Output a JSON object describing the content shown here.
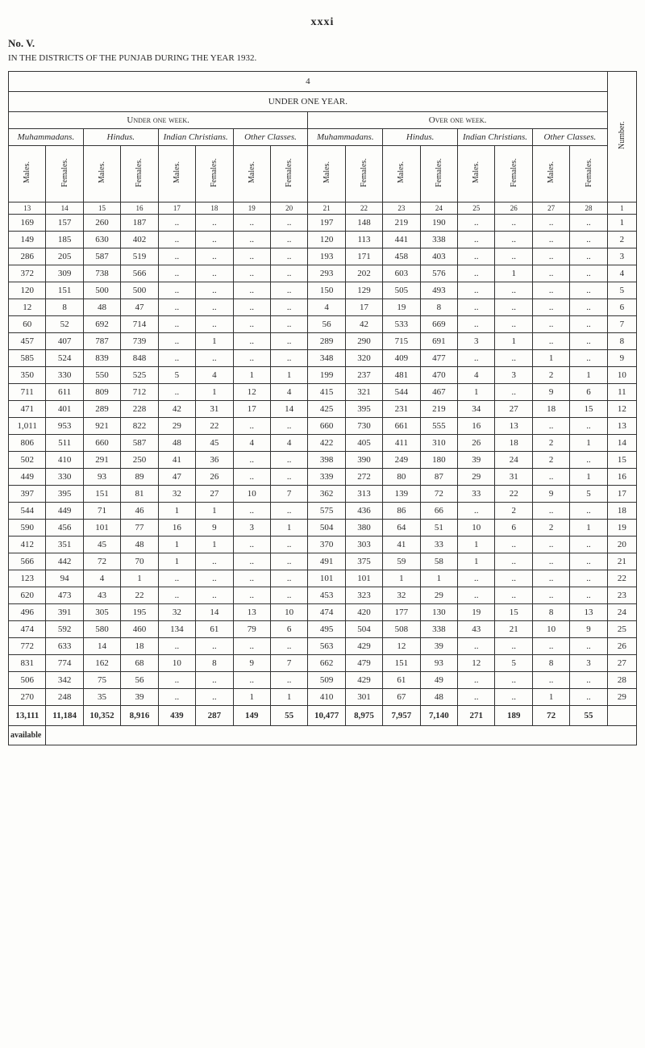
{
  "page_number_roman": "xxxi",
  "section_no": "No. V.",
  "caption": "IN THE DISTRICTS OF THE PUNJAB DURING THE YEAR 1932.",
  "top_header_1": "4",
  "top_header_2": "UNDER ONE YEAR.",
  "span_under": "Under one week.",
  "span_over": "Over one week.",
  "groups": {
    "muham": "Muhammadans.",
    "hindu": "Hindus.",
    "indch": "Indian Christians.",
    "other": "Other Classes."
  },
  "mf": {
    "m": "Males.",
    "f": "Females."
  },
  "number_label": "Number.",
  "available_label": "available",
  "colnums": [
    "13",
    "14",
    "15",
    "16",
    "17",
    "18",
    "19",
    "20",
    "21",
    "22",
    "23",
    "24",
    "25",
    "26",
    "27",
    "28",
    "1"
  ],
  "rows": [
    [
      "169",
      "157",
      "260",
      "187",
      "..",
      "..",
      "..",
      "..",
      "197",
      "148",
      "219",
      "190",
      "..",
      "..",
      "..",
      "..",
      "1"
    ],
    [
      "149",
      "185",
      "630",
      "402",
      "..",
      "..",
      "..",
      "..",
      "120",
      "113",
      "441",
      "338",
      "..",
      "..",
      "..",
      "..",
      "2"
    ],
    [
      "286",
      "205",
      "587",
      "519",
      "..",
      "..",
      "..",
      "..",
      "193",
      "171",
      "458",
      "403",
      "..",
      "..",
      "..",
      "..",
      "3"
    ],
    [
      "372",
      "309",
      "738",
      "566",
      "..",
      "..",
      "..",
      "..",
      "293",
      "202",
      "603",
      "576",
      "..",
      "1",
      "..",
      "..",
      "4"
    ],
    [
      "120",
      "151",
      "500",
      "500",
      "..",
      "..",
      "..",
      "..",
      "150",
      "129",
      "505",
      "493",
      "..",
      "..",
      "..",
      "..",
      "5"
    ],
    [
      "12",
      "8",
      "48",
      "47",
      "..",
      "..",
      "..",
      "..",
      "4",
      "17",
      "19",
      "8",
      "..",
      "..",
      "..",
      "..",
      "6"
    ],
    [
      "60",
      "52",
      "692",
      "714",
      "..",
      "..",
      "..",
      "..",
      "56",
      "42",
      "533",
      "669",
      "..",
      "..",
      "..",
      "..",
      "7"
    ],
    [
      "457",
      "407",
      "787",
      "739",
      "..",
      "1",
      "..",
      "..",
      "289",
      "290",
      "715",
      "691",
      "3",
      "1",
      "..",
      "..",
      "8"
    ],
    [
      "585",
      "524",
      "839",
      "848",
      "..",
      "..",
      "..",
      "..",
      "348",
      "320",
      "409",
      "477",
      "..",
      "..",
      "1",
      "..",
      "9"
    ],
    [
      "350",
      "330",
      "550",
      "525",
      "5",
      "4",
      "1",
      "1",
      "199",
      "237",
      "481",
      "470",
      "4",
      "3",
      "2",
      "1",
      "10"
    ],
    [
      "711",
      "611",
      "809",
      "712",
      "..",
      "1",
      "12",
      "4",
      "415",
      "321",
      "544",
      "467",
      "1",
      "..",
      "9",
      "6",
      "11"
    ],
    [
      "471",
      "401",
      "289",
      "228",
      "42",
      "31",
      "17",
      "14",
      "425",
      "395",
      "231",
      "219",
      "34",
      "27",
      "18",
      "15",
      "12"
    ],
    [
      "1,011",
      "953",
      "921",
      "822",
      "29",
      "22",
      "..",
      "..",
      "660",
      "730",
      "661",
      "555",
      "16",
      "13",
      "..",
      "..",
      "13"
    ],
    [
      "806",
      "511",
      "660",
      "587",
      "48",
      "45",
      "4",
      "4",
      "422",
      "405",
      "411",
      "310",
      "26",
      "18",
      "2",
      "1",
      "14"
    ],
    [
      "502",
      "410",
      "291",
      "250",
      "41",
      "36",
      "..",
      "..",
      "398",
      "390",
      "249",
      "180",
      "39",
      "24",
      "2",
      "..",
      "15"
    ],
    [
      "449",
      "330",
      "93",
      "89",
      "47",
      "26",
      "..",
      "..",
      "339",
      "272",
      "80",
      "87",
      "29",
      "31",
      "..",
      "1",
      "16"
    ],
    [
      "397",
      "395",
      "151",
      "81",
      "32",
      "27",
      "10",
      "7",
      "362",
      "313",
      "139",
      "72",
      "33",
      "22",
      "9",
      "5",
      "17"
    ],
    [
      "544",
      "449",
      "71",
      "46",
      "1",
      "1",
      "..",
      "..",
      "575",
      "436",
      "86",
      "66",
      "..",
      "2",
      "..",
      "..",
      "18"
    ],
    [
      "590",
      "456",
      "101",
      "77",
      "16",
      "9",
      "3",
      "1",
      "504",
      "380",
      "64",
      "51",
      "10",
      "6",
      "2",
      "1",
      "19"
    ],
    [
      "412",
      "351",
      "45",
      "48",
      "1",
      "1",
      "..",
      "..",
      "370",
      "303",
      "41",
      "33",
      "1",
      "..",
      "..",
      "..",
      "20"
    ],
    [
      "566",
      "442",
      "72",
      "70",
      "1",
      "..",
      "..",
      "..",
      "491",
      "375",
      "59",
      "58",
      "1",
      "..",
      "..",
      "..",
      "21"
    ],
    [
      "123",
      "94",
      "4",
      "1",
      "..",
      "..",
      "..",
      "..",
      "101",
      "101",
      "1",
      "1",
      "..",
      "..",
      "..",
      "..",
      "22"
    ],
    [
      "620",
      "473",
      "43",
      "22",
      "..",
      "..",
      "..",
      "..",
      "453",
      "323",
      "32",
      "29",
      "..",
      "..",
      "..",
      "..",
      "23"
    ],
    [
      "496",
      "391",
      "305",
      "195",
      "32",
      "14",
      "13",
      "10",
      "474",
      "420",
      "177",
      "130",
      "19",
      "15",
      "8",
      "13",
      "24"
    ],
    [
      "474",
      "592",
      "580",
      "460",
      "134",
      "61",
      "79",
      "6",
      "495",
      "504",
      "508",
      "338",
      "43",
      "21",
      "10",
      "9",
      "25"
    ],
    [
      "772",
      "633",
      "14",
      "18",
      "..",
      "..",
      "..",
      "..",
      "563",
      "429",
      "12",
      "39",
      "..",
      "..",
      "..",
      "..",
      "26"
    ],
    [
      "831",
      "774",
      "162",
      "68",
      "10",
      "8",
      "9",
      "7",
      "662",
      "479",
      "151",
      "93",
      "12",
      "5",
      "8",
      "3",
      "27"
    ],
    [
      "506",
      "342",
      "75",
      "56",
      "..",
      "..",
      "..",
      "..",
      "509",
      "429",
      "61",
      "49",
      "..",
      "..",
      "..",
      "..",
      "28"
    ],
    [
      "270",
      "248",
      "35",
      "39",
      "..",
      "..",
      "1",
      "1",
      "410",
      "301",
      "67",
      "48",
      "..",
      "..",
      "1",
      "..",
      "29"
    ]
  ],
  "totals": [
    "13,111",
    "11,184",
    "10,352",
    "8,916",
    "439",
    "287",
    "149",
    "55",
    "10,477",
    "8,975",
    "7,957",
    "7,140",
    "271",
    "189",
    "72",
    "55",
    ""
  ]
}
